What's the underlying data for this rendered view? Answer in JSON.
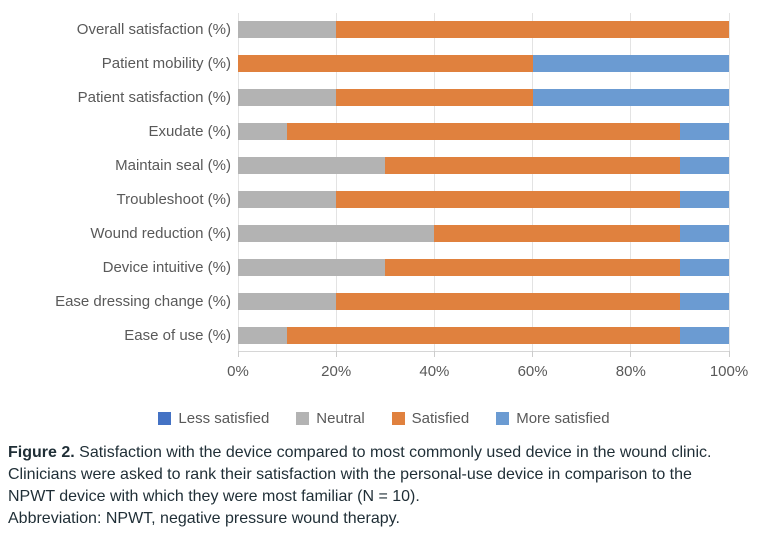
{
  "chart_data": {
    "type": "bar",
    "orientation": "horizontal",
    "stacked": true,
    "title": "",
    "xlabel": "",
    "ylabel": "",
    "grid": true,
    "x_axis": {
      "min": 0,
      "max": 100,
      "tick_step": 20,
      "ticks": [
        "0%",
        "20%",
        "40%",
        "60%",
        "80%",
        "100%"
      ]
    },
    "categories": [
      "Overall satisfaction (%)",
      "Patient mobility (%)",
      "Patient satisfaction (%)",
      "Exudate (%)",
      "Maintain seal (%)",
      "Troubleshoot (%)",
      "Wound reduction (%)",
      "Device intuitive (%)",
      "Ease dressing change (%)",
      "Ease of use (%)"
    ],
    "series": [
      {
        "name": "Less satisfied",
        "color": "#4472c4",
        "values": [
          0,
          0,
          0,
          0,
          0,
          0,
          0,
          0,
          0,
          0
        ]
      },
      {
        "name": "Neutral",
        "color": "#b3b3b3",
        "values": [
          20,
          0,
          20,
          10,
          30,
          20,
          40,
          30,
          20,
          10
        ]
      },
      {
        "name": "Satisfied",
        "color": "#e0813e",
        "values": [
          80,
          60,
          40,
          80,
          60,
          70,
          50,
          60,
          70,
          80
        ]
      },
      {
        "name": "More satisfied",
        "color": "#6b9bd2",
        "values": [
          0,
          40,
          40,
          10,
          10,
          10,
          10,
          10,
          10,
          10
        ]
      }
    ],
    "legend": [
      "Less satisfied",
      "Neutral",
      "Satisfied",
      "More satisfied"
    ],
    "legend_position": "bottom"
  },
  "caption": {
    "figure_label": "Figure 2.",
    "line1": "Satisfaction with the device compared to most commonly used device in the wound clinic.",
    "line2": "Clinicians were asked to rank their satisfaction with the personal-use device in comparison to the",
    "line3": "NPWT device with which they were most familiar (N = 10).",
    "line4": "Abbreviation: NPWT, negative pressure wound therapy."
  },
  "colors": {
    "gridline": "#e3e3e3",
    "axis_text": "#595959",
    "caption_text": "#1f2e36"
  }
}
